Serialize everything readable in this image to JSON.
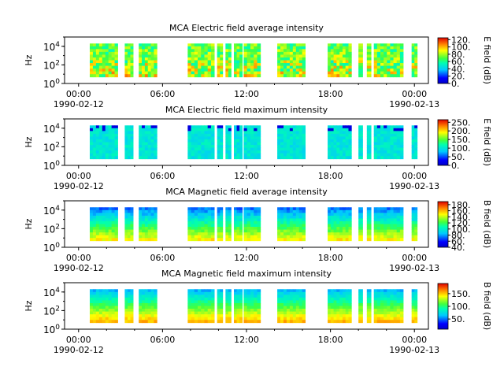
{
  "chart_data": [
    {
      "type": "heatmap",
      "title": "MCA  Electric field average intensity",
      "ylabel": "Hz",
      "y_scale": "log",
      "ylim": [
        1,
        100000
      ],
      "y_ticks": [
        {
          "value": 1,
          "base": "10",
          "exp": "0"
        },
        {
          "value": 100,
          "base": "10",
          "exp": "2"
        },
        {
          "value": 10000,
          "base": "10",
          "exp": "4"
        }
      ],
      "x_ticks": [
        {
          "hours": 0,
          "time": "00:00",
          "date": "1990-02-12"
        },
        {
          "hours": 6,
          "time": "06:00",
          "date": ""
        },
        {
          "hours": 12,
          "time": "12:00",
          "date": ""
        },
        {
          "hours": 18,
          "time": "18:00",
          "date": ""
        },
        {
          "hours": 24,
          "time": "00:00",
          "date": "1990-02-13"
        }
      ],
      "xlim_hours": [
        -1,
        25
      ],
      "colorbar": {
        "label": "E field (dB)",
        "range": [
          0,
          125
        ],
        "ticks": [
          "0.",
          "20.",
          "40.",
          "60.",
          "80.",
          "100.",
          "120."
        ],
        "tick_values": [
          0,
          20,
          40,
          60,
          80,
          100,
          120
        ]
      },
      "data_intervals_hours": [
        [
          0.8,
          2.8
        ],
        [
          3.3,
          3.9
        ],
        [
          4.3,
          5.6
        ],
        [
          7.8,
          9.7
        ],
        [
          9.9,
          10.3
        ],
        [
          10.5,
          10.9
        ],
        [
          11.1,
          11.7
        ],
        [
          11.8,
          13.0
        ],
        [
          14.2,
          16.2
        ],
        [
          17.8,
          19.5
        ],
        [
          20.0,
          20.3
        ],
        [
          20.6,
          20.9
        ],
        [
          21.1,
          23.2
        ],
        [
          23.8,
          24.2
        ]
      ],
      "intensity_profile": "high_low_freq"
    },
    {
      "type": "heatmap",
      "title": "MCA  Electric field maximum intensity",
      "ylabel": "Hz",
      "y_scale": "log",
      "ylim": [
        1,
        100000
      ],
      "y_ticks": [
        {
          "value": 1,
          "base": "10",
          "exp": "0"
        },
        {
          "value": 100,
          "base": "10",
          "exp": "2"
        },
        {
          "value": 10000,
          "base": "10",
          "exp": "4"
        }
      ],
      "x_ticks": [
        {
          "hours": 0,
          "time": "00:00",
          "date": "1990-02-12"
        },
        {
          "hours": 6,
          "time": "06:00",
          "date": ""
        },
        {
          "hours": 12,
          "time": "12:00",
          "date": ""
        },
        {
          "hours": 18,
          "time": "18:00",
          "date": ""
        },
        {
          "hours": 24,
          "time": "00:00",
          "date": "1990-02-13"
        }
      ],
      "xlim_hours": [
        -1,
        25
      ],
      "colorbar": {
        "label": "E field (dB)",
        "range": [
          0,
          265
        ],
        "ticks": [
          "0.",
          "50.",
          "100.",
          "150.",
          "200.",
          "250."
        ],
        "tick_values": [
          0,
          50,
          100,
          150,
          200,
          250
        ]
      },
      "data_intervals_hours": [
        [
          0.8,
          2.8
        ],
        [
          3.3,
          3.9
        ],
        [
          4.3,
          5.6
        ],
        [
          7.8,
          9.7
        ],
        [
          9.9,
          10.3
        ],
        [
          10.5,
          10.9
        ],
        [
          11.1,
          11.7
        ],
        [
          11.8,
          13.0
        ],
        [
          14.2,
          16.2
        ],
        [
          17.8,
          19.5
        ],
        [
          20.0,
          20.3
        ],
        [
          20.6,
          20.9
        ],
        [
          21.1,
          23.2
        ],
        [
          23.8,
          24.2
        ]
      ],
      "intensity_profile": "flat_mid"
    },
    {
      "type": "heatmap",
      "title": "MCA  Magnetic field average intensity",
      "ylabel": "Hz",
      "y_scale": "log",
      "ylim": [
        1,
        100000
      ],
      "y_ticks": [
        {
          "value": 1,
          "base": "10",
          "exp": "0"
        },
        {
          "value": 100,
          "base": "10",
          "exp": "2"
        },
        {
          "value": 10000,
          "base": "10",
          "exp": "4"
        }
      ],
      "x_ticks": [
        {
          "hours": 0,
          "time": "00:00",
          "date": "1990-02-12"
        },
        {
          "hours": 6,
          "time": "06:00",
          "date": ""
        },
        {
          "hours": 12,
          "time": "12:00",
          "date": ""
        },
        {
          "hours": 18,
          "time": "18:00",
          "date": ""
        },
        {
          "hours": 24,
          "time": "00:00",
          "date": "1990-02-13"
        }
      ],
      "xlim_hours": [
        -1,
        25
      ],
      "colorbar": {
        "label": "B field (dB)",
        "range": [
          40,
          190
        ],
        "ticks": [
          "40.",
          "60.",
          "80.",
          "100.",
          "120.",
          "140.",
          "160.",
          "180."
        ],
        "tick_values": [
          40,
          60,
          80,
          100,
          120,
          140,
          160,
          180
        ]
      },
      "data_intervals_hours": [
        [
          0.8,
          2.8
        ],
        [
          3.3,
          3.9
        ],
        [
          4.3,
          5.6
        ],
        [
          7.8,
          9.7
        ],
        [
          9.9,
          10.3
        ],
        [
          10.5,
          10.9
        ],
        [
          11.1,
          11.7
        ],
        [
          11.8,
          13.0
        ],
        [
          14.2,
          16.2
        ],
        [
          17.8,
          19.5
        ],
        [
          20.0,
          20.3
        ],
        [
          20.6,
          20.9
        ],
        [
          21.1,
          23.2
        ],
        [
          23.8,
          24.2
        ]
      ],
      "intensity_profile": "gradient_low_high"
    },
    {
      "type": "heatmap",
      "title": "MCA  Magnetic field maximum intensity",
      "ylabel": "Hz",
      "y_scale": "log",
      "ylim": [
        1,
        100000
      ],
      "y_ticks": [
        {
          "value": 1,
          "base": "10",
          "exp": "0"
        },
        {
          "value": 100,
          "base": "10",
          "exp": "2"
        },
        {
          "value": 10000,
          "base": "10",
          "exp": "4"
        }
      ],
      "x_ticks": [
        {
          "hours": 0,
          "time": "00:00",
          "date": "1990-02-12"
        },
        {
          "hours": 6,
          "time": "06:00",
          "date": ""
        },
        {
          "hours": 12,
          "time": "12:00",
          "date": ""
        },
        {
          "hours": 18,
          "time": "18:00",
          "date": ""
        },
        {
          "hours": 24,
          "time": "00:00",
          "date": "1990-02-13"
        }
      ],
      "xlim_hours": [
        -1,
        25
      ],
      "colorbar": {
        "label": "B field (dB)",
        "range": [
          10,
          190
        ],
        "ticks": [
          "50.",
          "100.",
          "150."
        ],
        "tick_values": [
          50,
          100,
          150
        ]
      },
      "data_intervals_hours": [
        [
          0.8,
          2.8
        ],
        [
          3.3,
          3.9
        ],
        [
          4.3,
          5.6
        ],
        [
          7.8,
          9.7
        ],
        [
          9.9,
          10.3
        ],
        [
          10.5,
          10.9
        ],
        [
          11.1,
          11.7
        ],
        [
          11.8,
          13.0
        ],
        [
          14.2,
          16.2
        ],
        [
          17.8,
          19.5
        ],
        [
          20.0,
          20.3
        ],
        [
          20.6,
          20.9
        ],
        [
          21.1,
          23.2
        ],
        [
          23.8,
          24.2
        ]
      ],
      "intensity_profile": "gradient_low_high_strong"
    }
  ]
}
